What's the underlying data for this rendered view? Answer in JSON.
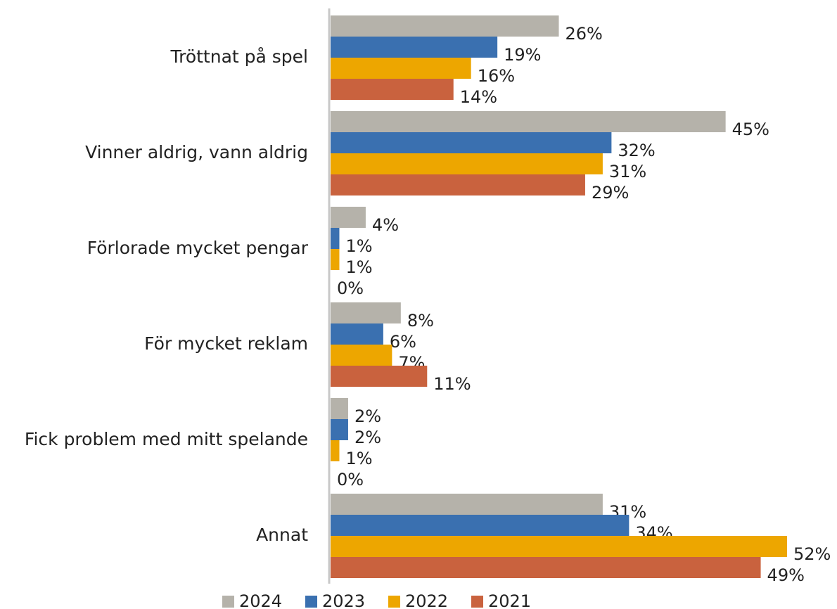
{
  "chart_data": {
    "type": "bar",
    "orientation": "horizontal",
    "categories": [
      "Tröttnat på spel",
      "Vinner aldrig, vann aldrig",
      "Förlorade mycket pengar",
      "För mycket reklam",
      "Fick problem med mitt spelande",
      "Annat"
    ],
    "series": [
      {
        "name": "2024",
        "color": "#b5b2aa",
        "values": [
          26,
          45,
          4,
          8,
          2,
          31
        ],
        "value_labels": [
          "26%",
          "45%",
          "4%",
          "8%",
          "2%",
          "31%"
        ]
      },
      {
        "name": "2023",
        "color": "#3a70b0",
        "values": [
          19,
          32,
          1,
          6,
          2,
          34
        ],
        "value_labels": [
          "19%",
          "32%",
          "1%",
          "6%",
          "2%",
          "34%"
        ]
      },
      {
        "name": "2022",
        "color": "#eda600",
        "values": [
          16,
          31,
          1,
          7,
          1,
          52
        ],
        "value_labels": [
          "16%",
          "31%",
          "1%",
          "7%",
          "1%",
          "52%"
        ]
      },
      {
        "name": "2021",
        "color": "#c9623e",
        "values": [
          14,
          29,
          0,
          11,
          0,
          49
        ],
        "value_labels": [
          "14%",
          "29%",
          "0%",
          "11%",
          "0%",
          "49%"
        ]
      }
    ],
    "legend": "bottom"
  }
}
